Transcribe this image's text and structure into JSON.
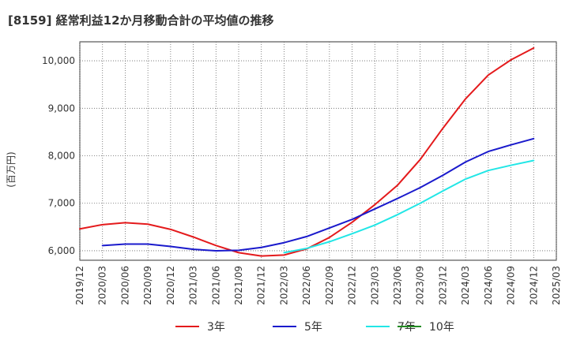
{
  "chart_data": {
    "type": "line",
    "title": "[8159]  経常利益12か月移動合計の平均値の推移",
    "ylabel": "(百万円)",
    "xlabel": "",
    "ylim": [
      5800,
      10400
    ],
    "yticks": [
      6000,
      7000,
      8000,
      9000,
      10000
    ],
    "ytick_labels": [
      "6,000",
      "7,000",
      "8,000",
      "9,000",
      "10,000"
    ],
    "xlim": [
      "2019/12",
      "2025/03"
    ],
    "xtick_labels": [
      "2019/12",
      "2020/03",
      "2020/06",
      "2020/09",
      "2020/12",
      "2021/03",
      "2021/06",
      "2021/09",
      "2021/12",
      "2022/03",
      "2022/06",
      "2022/09",
      "2022/12",
      "2023/03",
      "2023/06",
      "2023/09",
      "2023/12",
      "2024/03",
      "2024/06",
      "2024/09",
      "2024/12",
      "2025/03"
    ],
    "grid": true,
    "legend_position": "bottom",
    "series": [
      {
        "name": "3年",
        "color": "#e41a1c",
        "points": [
          [
            "2019/12",
            6460
          ],
          [
            "2020/03",
            6550
          ],
          [
            "2020/06",
            6590
          ],
          [
            "2020/09",
            6560
          ],
          [
            "2020/12",
            6450
          ],
          [
            "2021/03",
            6290
          ],
          [
            "2021/06",
            6110
          ],
          [
            "2021/09",
            5960
          ],
          [
            "2021/12",
            5890
          ],
          [
            "2022/03",
            5910
          ],
          [
            "2022/06",
            6040
          ],
          [
            "2022/09",
            6280
          ],
          [
            "2022/12",
            6600
          ],
          [
            "2023/03",
            6970
          ],
          [
            "2023/06",
            7380
          ],
          [
            "2023/09",
            7920
          ],
          [
            "2023/12",
            8580
          ],
          [
            "2024/03",
            9200
          ],
          [
            "2024/06",
            9700
          ],
          [
            "2024/09",
            10020
          ],
          [
            "2024/12",
            10270
          ]
        ]
      },
      {
        "name": "5年",
        "color": "#1a1acc",
        "points": [
          [
            "2020/03",
            6110
          ],
          [
            "2020/06",
            6140
          ],
          [
            "2020/09",
            6140
          ],
          [
            "2020/12",
            6090
          ],
          [
            "2021/03",
            6030
          ],
          [
            "2021/06",
            6000
          ],
          [
            "2021/09",
            6010
          ],
          [
            "2021/12",
            6070
          ],
          [
            "2022/03",
            6170
          ],
          [
            "2022/06",
            6300
          ],
          [
            "2022/09",
            6480
          ],
          [
            "2022/12",
            6660
          ],
          [
            "2023/03",
            6880
          ],
          [
            "2023/06",
            7100
          ],
          [
            "2023/09",
            7330
          ],
          [
            "2023/12",
            7590
          ],
          [
            "2024/03",
            7870
          ],
          [
            "2024/06",
            8090
          ],
          [
            "2024/09",
            8230
          ],
          [
            "2024/12",
            8360
          ]
        ]
      },
      {
        "name": "7年",
        "color": "#22e6e6",
        "points": [
          [
            "2022/03",
            5960
          ],
          [
            "2022/06",
            6050
          ],
          [
            "2022/09",
            6190
          ],
          [
            "2022/12",
            6360
          ],
          [
            "2023/03",
            6540
          ],
          [
            "2023/06",
            6760
          ],
          [
            "2023/09",
            7000
          ],
          [
            "2023/12",
            7260
          ],
          [
            "2024/03",
            7510
          ],
          [
            "2024/06",
            7690
          ],
          [
            "2024/09",
            7800
          ],
          [
            "2024/12",
            7900
          ]
        ]
      },
      {
        "name": "10年",
        "color": "#228b22",
        "points": []
      }
    ]
  }
}
